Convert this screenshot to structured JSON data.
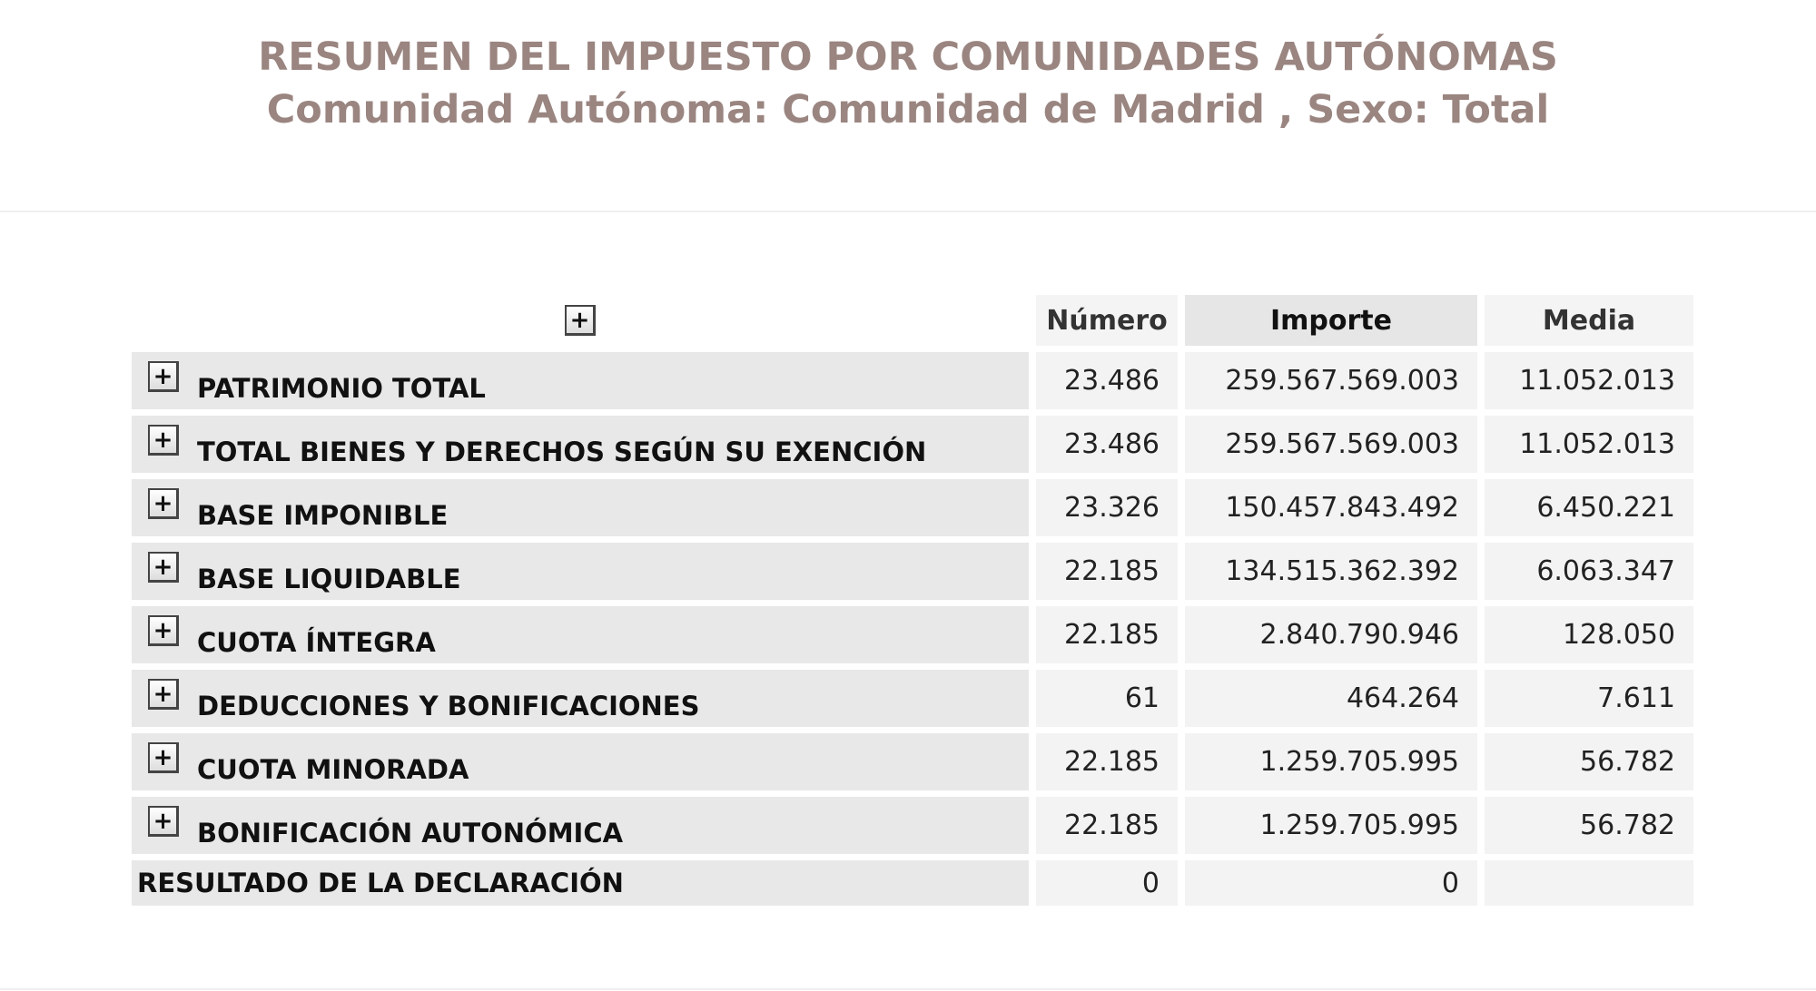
{
  "header": {
    "title": "RESUMEN DEL IMPUESTO POR COMUNIDADES AUTÓNOMAS",
    "subtitle": "Comunidad Autónoma: Comunidad de Madrid , Sexo: Total"
  },
  "colors": {
    "title": "#9a8580",
    "label_bg": "#e8e8e8",
    "value_bg": "#f3f3f3"
  },
  "table": {
    "expand_icon": "plus-square-icon",
    "columns": [
      "Número",
      "Importe",
      "Media"
    ],
    "rows": [
      {
        "label": "PATRIMONIO TOTAL",
        "numero": "23.486",
        "importe": "259.567.569.003",
        "media": "11.052.013"
      },
      {
        "label": "TOTAL BIENES Y DERECHOS SEGÚN SU EXENCIÓN",
        "numero": "23.486",
        "importe": "259.567.569.003",
        "media": "11.052.013"
      },
      {
        "label": "BASE IMPONIBLE",
        "numero": "23.326",
        "importe": "150.457.843.492",
        "media": "6.450.221"
      },
      {
        "label": "BASE LIQUIDABLE",
        "numero": "22.185",
        "importe": "134.515.362.392",
        "media": "6.063.347"
      },
      {
        "label": "CUOTA ÍNTEGRA",
        "numero": "22.185",
        "importe": "2.840.790.946",
        "media": "128.050"
      },
      {
        "label": "DEDUCCIONES Y BONIFICACIONES",
        "numero": "61",
        "importe": "464.264",
        "media": "7.611"
      },
      {
        "label": "CUOTA MINORADA",
        "numero": "22.185",
        "importe": "1.259.705.995",
        "media": "56.782"
      },
      {
        "label": "BONIFICACIÓN AUTONÓMICA",
        "numero": "22.185",
        "importe": "1.259.705.995",
        "media": "56.782"
      }
    ],
    "result_row": {
      "label": "RESULTADO DE LA DECLARACIÓN",
      "numero": "0",
      "importe": "0",
      "media": ""
    }
  }
}
